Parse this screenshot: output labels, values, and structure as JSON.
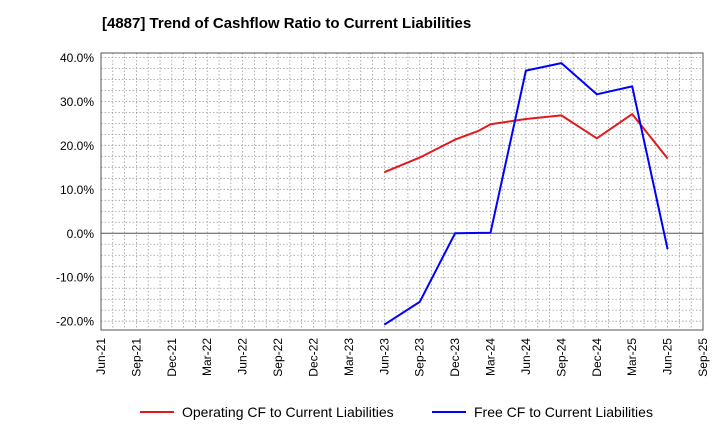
{
  "chart_data": {
    "type": "line",
    "title": "[4887]  Trend of Cashflow Ratio to Current Liabilities",
    "xlabel": "",
    "ylabel": "",
    "x_ticks": [
      "Jun-21",
      "Sep-21",
      "Dec-21",
      "Mar-22",
      "Jun-22",
      "Sep-22",
      "Dec-22",
      "Mar-23",
      "Jun-23",
      "Sep-23",
      "Dec-23",
      "Mar-24",
      "Jun-24",
      "Sep-24",
      "Dec-24",
      "Mar-25",
      "Jun-25",
      "Sep-25"
    ],
    "y_ticks": [
      "40.0%",
      "30.0%",
      "20.0%",
      "10.0%",
      "0.0%",
      "-10.0%",
      "-20.0%"
    ],
    "ylim": [
      -22,
      41
    ],
    "grid": true,
    "legend_position": "bottom",
    "series": [
      {
        "name": "Operating CF to Current Liabilities",
        "color": "#e31a1c",
        "points": [
          {
            "x": "Jun-23",
            "y": 13.9
          },
          {
            "x": "Sep-23",
            "y": 17.2
          },
          {
            "x": "Dec-23",
            "y": 21.3
          },
          {
            "x": "Feb-24",
            "y": 23.3
          },
          {
            "x": "Mar-24",
            "y": 24.8
          },
          {
            "x": "Jun-24",
            "y": 26.0
          },
          {
            "x": "Sep-24",
            "y": 26.8
          },
          {
            "x": "Dec-24",
            "y": 21.6
          },
          {
            "x": "Mar-25",
            "y": 27.1
          },
          {
            "x": "Jun-25",
            "y": 17.0
          }
        ]
      },
      {
        "name": "Free CF to Current Liabilities",
        "color": "#0000ff",
        "points": [
          {
            "x": "Jun-23",
            "y": -20.8
          },
          {
            "x": "Sep-23",
            "y": -15.6
          },
          {
            "x": "Dec-23",
            "y": 0.0
          },
          {
            "x": "Mar-24",
            "y": 0.1
          },
          {
            "x": "Jun-24",
            "y": 37.0
          },
          {
            "x": "Sep-24",
            "y": 38.7
          },
          {
            "x": "Dec-24",
            "y": 31.6
          },
          {
            "x": "Mar-25",
            "y": 33.4
          },
          {
            "x": "Jun-25",
            "y": -3.6
          }
        ]
      }
    ]
  }
}
